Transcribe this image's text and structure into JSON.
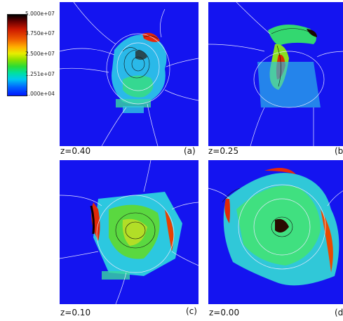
{
  "colorbar": {
    "ticks": [
      "5.000e+07",
      "3.750e+07",
      "2.500e+07",
      "1.251e+07",
      "1.000e+04"
    ],
    "gradient_colors": [
      "#000000",
      "#cc1800",
      "#ee5a00",
      "#e7ee00",
      "#2bdc35",
      "#00c8f0",
      "#0018ff"
    ]
  },
  "panels": [
    {
      "redshift": "z=0.40",
      "tag": "(a)"
    },
    {
      "redshift": "z=0.25",
      "tag": "(b"
    },
    {
      "redshift": "z=0.10",
      "tag": "(c)"
    },
    {
      "redshift": "z=0.00",
      "tag": "(d"
    }
  ],
  "colors": {
    "background_field": "#1414f0",
    "contour": "#e8e8ff",
    "dark_contour": "#101010"
  }
}
